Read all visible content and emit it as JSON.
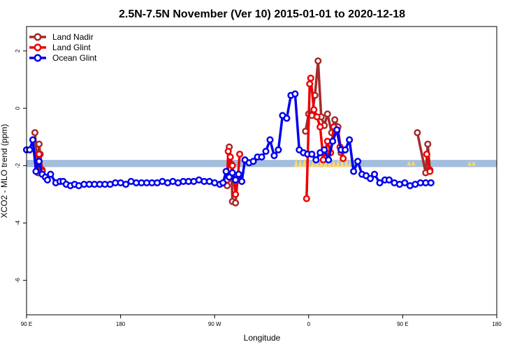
{
  "chart_data": {
    "type": "line",
    "title": "2.5N-7.5N November (Ver 10)   2015-01-01 to 2020-12-18",
    "xlabel": "Longitude",
    "ylabel": "XCO2 - MLO trend (ppm)",
    "x_ticks": [
      {
        "value": 90,
        "label": "90 E"
      },
      {
        "value": 180,
        "label": "180"
      },
      {
        "value": 270,
        "label": "90 W"
      },
      {
        "value": 360,
        "label": "0"
      },
      {
        "value": 450,
        "label": "90 E"
      },
      {
        "value": 540,
        "label": "180"
      }
    ],
    "y_ticks": [
      {
        "value": 2,
        "label": "2"
      },
      {
        "value": 0,
        "label": "0"
      },
      {
        "value": -2,
        "label": "-2"
      },
      {
        "value": -4,
        "label": "-4"
      },
      {
        "value": -6,
        "label": "-6"
      }
    ],
    "xlim": [
      90,
      540
    ],
    "ylim": [
      -7.2,
      2.85
    ],
    "legend_position": "top-left",
    "band": {
      "y_min": -2.05,
      "y_max": -1.8,
      "color": "#a3bedd"
    },
    "land_mask_color": "#fcd573",
    "land_mask": [
      [
        96,
        105,
        -2.0,
        -1.82
      ],
      [
        281,
        286,
        -2.0,
        -1.86
      ],
      [
        346,
        400,
        -2.05,
        -1.75
      ],
      [
        454,
        462,
        -2.0,
        -1.82
      ],
      [
        512,
        520,
        -2.0,
        -1.84
      ]
    ],
    "series": [
      {
        "name": "Land Nadir",
        "color": "#a52a2a",
        "segments": [
          [
            [
              98,
              -0.85
            ],
            [
              101,
              -2.25
            ],
            [
              102,
              -1.25
            ],
            [
              103,
              -1.6
            ],
            [
              105,
              -2.15
            ]
          ],
          [
            [
              282,
              -2.7
            ],
            [
              284,
              -1.35
            ],
            [
              286,
              -1.95
            ],
            [
              287,
              -3.25
            ],
            [
              290,
              -3.3
            ],
            [
              292,
              -2.45
            ]
          ],
          [
            [
              357,
              -0.8
            ],
            [
              360,
              -0.2
            ],
            [
              363,
              -0.25
            ],
            [
              366,
              0.45
            ],
            [
              369,
              1.65
            ],
            [
              372,
              -0.3
            ],
            [
              375,
              -0.6
            ],
            [
              378,
              -0.2
            ],
            [
              382,
              -0.85
            ],
            [
              385,
              -0.4
            ],
            [
              388,
              -0.65
            ],
            [
              391,
              -1.55
            ]
          ],
          [
            [
              464,
              -0.85
            ],
            [
              472,
              -2.25
            ],
            [
              474,
              -1.25
            ],
            [
              476,
              -2.15
            ]
          ]
        ]
      },
      {
        "name": "Land Glint",
        "color": "#ee0000",
        "segments": [
          [
            [
              102,
              -1.6
            ],
            [
              105,
              -2.2
            ]
          ],
          [
            [
              282,
              -2.5
            ],
            [
              283,
              -1.5
            ],
            [
              285,
              -1.7
            ],
            [
              287,
              -2.0
            ],
            [
              290,
              -3.0
            ],
            [
              292,
              -2.5
            ],
            [
              294,
              -1.6
            ]
          ],
          [
            [
              358,
              -3.15
            ],
            [
              361,
              0.85
            ],
            [
              362,
              1.05
            ],
            [
              365,
              -0.05
            ],
            [
              368,
              -0.3
            ],
            [
              371,
              -0.65
            ],
            [
              374,
              -1.8
            ],
            [
              378,
              -1.15
            ],
            [
              381,
              -1.55
            ],
            [
              384,
              -0.65
            ],
            [
              387,
              -0.8
            ],
            [
              390,
              -1.35
            ],
            [
              393,
              -1.75
            ]
          ],
          [
            [
              473,
              -1.6
            ],
            [
              476,
              -2.2
            ]
          ]
        ]
      },
      {
        "name": "Ocean Glint",
        "color": "#0000ee",
        "segments": [
          [
            [
              90,
              -1.45
            ],
            [
              93,
              -1.45
            ],
            [
              96,
              -1.1
            ],
            [
              99,
              -2.2
            ],
            [
              102,
              -1.85
            ],
            [
              105,
              -2.3
            ],
            [
              108,
              -2.4
            ],
            [
              110,
              -2.5
            ],
            [
              113,
              -2.3
            ],
            [
              118,
              -2.6
            ],
            [
              122,
              -2.55
            ],
            [
              125,
              -2.55
            ],
            [
              128,
              -2.65
            ],
            [
              132,
              -2.7
            ],
            [
              136,
              -2.65
            ],
            [
              140,
              -2.7
            ],
            [
              145,
              -2.65
            ],
            [
              150,
              -2.65
            ],
            [
              155,
              -2.65
            ],
            [
              160,
              -2.65
            ],
            [
              165,
              -2.65
            ],
            [
              170,
              -2.65
            ],
            [
              175,
              -2.6
            ],
            [
              180,
              -2.6
            ],
            [
              185,
              -2.65
            ],
            [
              190,
              -2.55
            ],
            [
              195,
              -2.6
            ],
            [
              200,
              -2.6
            ],
            [
              205,
              -2.6
            ],
            [
              210,
              -2.6
            ],
            [
              215,
              -2.6
            ],
            [
              220,
              -2.55
            ],
            [
              225,
              -2.6
            ],
            [
              230,
              -2.55
            ],
            [
              235,
              -2.6
            ],
            [
              240,
              -2.55
            ],
            [
              245,
              -2.55
            ],
            [
              250,
              -2.55
            ],
            [
              255,
              -2.5
            ],
            [
              260,
              -2.55
            ],
            [
              265,
              -2.55
            ],
            [
              270,
              -2.6
            ],
            [
              275,
              -2.65
            ],
            [
              278,
              -2.6
            ],
            [
              281,
              -2.2
            ],
            [
              284,
              -2.4
            ],
            [
              287,
              -2.25
            ],
            [
              290,
              -2.5
            ],
            [
              293,
              -2.3
            ],
            [
              296,
              -2.55
            ],
            [
              299,
              -1.8
            ],
            [
              303,
              -1.9
            ],
            [
              307,
              -1.85
            ],
            [
              311,
              -1.7
            ],
            [
              315,
              -1.7
            ],
            [
              319,
              -1.5
            ],
            [
              323,
              -1.1
            ],
            [
              327,
              -1.65
            ],
            [
              331,
              -1.45
            ],
            [
              335,
              -0.25
            ],
            [
              339,
              -0.35
            ],
            [
              343,
              0.45
            ],
            [
              347,
              0.5
            ],
            [
              351,
              -1.45
            ],
            [
              355,
              -1.55
            ],
            [
              359,
              -1.6
            ],
            [
              363,
              -1.6
            ],
            [
              367,
              -1.8
            ],
            [
              371,
              -1.55
            ],
            [
              375,
              -1.45
            ],
            [
              379,
              -1.8
            ],
            [
              383,
              -1.15
            ],
            [
              387,
              -0.75
            ],
            [
              391,
              -1.45
            ],
            [
              395,
              -1.45
            ],
            [
              399,
              -1.1
            ],
            [
              403,
              -2.2
            ],
            [
              407,
              -1.85
            ],
            [
              411,
              -2.3
            ],
            [
              415,
              -2.35
            ],
            [
              419,
              -2.45
            ],
            [
              423,
              -2.3
            ],
            [
              428,
              -2.6
            ],
            [
              433,
              -2.5
            ],
            [
              437,
              -2.5
            ],
            [
              442,
              -2.6
            ],
            [
              447,
              -2.65
            ],
            [
              452,
              -2.6
            ],
            [
              457,
              -2.7
            ],
            [
              462,
              -2.65
            ],
            [
              467,
              -2.6
            ],
            [
              472,
              -2.6
            ],
            [
              477,
              -2.6
            ]
          ]
        ]
      }
    ]
  }
}
